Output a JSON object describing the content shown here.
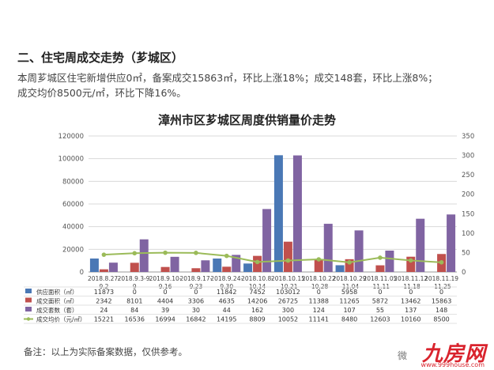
{
  "heading": "二、住宅周成交走势（芗城区）",
  "summary_line1": "本周芗城区住宅新增供应0㎡，备案成交15863㎡，环比上涨18%；成交148套，环比上涨8%；",
  "summary_line2": "成交均价8500元/㎡，环比下降16%。",
  "footnote": "备注：以上为实际备案数据，仅供参考。",
  "brand": "九房网",
  "brand_url": "www.999house.com",
  "watermark": "微",
  "colors": {
    "supply": "#4a78b5",
    "deal_area": "#c0504d",
    "deal_units": "#8064a2",
    "avg_price": "#9bbb59"
  },
  "chart_data": {
    "type": "bar",
    "title": "漳州市区芗城区周度供销量价走势",
    "categories": [
      [
        "2018.8.27-",
        "9.2"
      ],
      [
        "2018.9.3-9.",
        "9"
      ],
      [
        "2018.9.10-",
        "9.16"
      ],
      [
        "2018.9.17-",
        "9.23"
      ],
      [
        "2018.9.24-",
        "9.30"
      ],
      [
        "2018.10.8-",
        "10.14"
      ],
      [
        "2018.10.15",
        "-10.21"
      ],
      [
        "2018.10.22",
        "-10.28"
      ],
      [
        "2018.10.29",
        "-11.04"
      ],
      [
        "2018.11.05",
        "-11.11"
      ],
      [
        "2018.11.12",
        "-11.18"
      ],
      [
        "2018.11.19",
        "-11.25"
      ]
    ],
    "left_axis": {
      "min": 0,
      "max": 120000,
      "ticks": [
        0,
        20000,
        40000,
        60000,
        80000,
        100000,
        120000
      ]
    },
    "right_axis": {
      "min": 0,
      "max": 350,
      "ticks": [
        0,
        50,
        100,
        150,
        200,
        250,
        300,
        350
      ]
    },
    "series": [
      {
        "name": "供应面积（㎡）",
        "type": "bar",
        "axis": "left",
        "values": [
          11873,
          0,
          0,
          0,
          11842,
          7452,
          103012,
          0,
          5958,
          0,
          0,
          0
        ]
      },
      {
        "name": "成交面积（㎡）",
        "type": "bar",
        "axis": "left",
        "values": [
          2342,
          8101,
          4404,
          3306,
          4635,
          14206,
          26725,
          11388,
          11265,
          5872,
          13462,
          15863
        ]
      },
      {
        "name": "成交套数（套）",
        "type": "bar",
        "axis": "right",
        "values": [
          24,
          84,
          39,
          30,
          44,
          162,
          300,
          124,
          107,
          55,
          137,
          148
        ]
      },
      {
        "name": "成交均价（元/㎡）",
        "type": "line",
        "axis": "left",
        "values": [
          15221,
          16536,
          16994,
          16842,
          14195,
          8809,
          10052,
          11141,
          8480,
          12603,
          10160,
          8500
        ]
      }
    ]
  }
}
